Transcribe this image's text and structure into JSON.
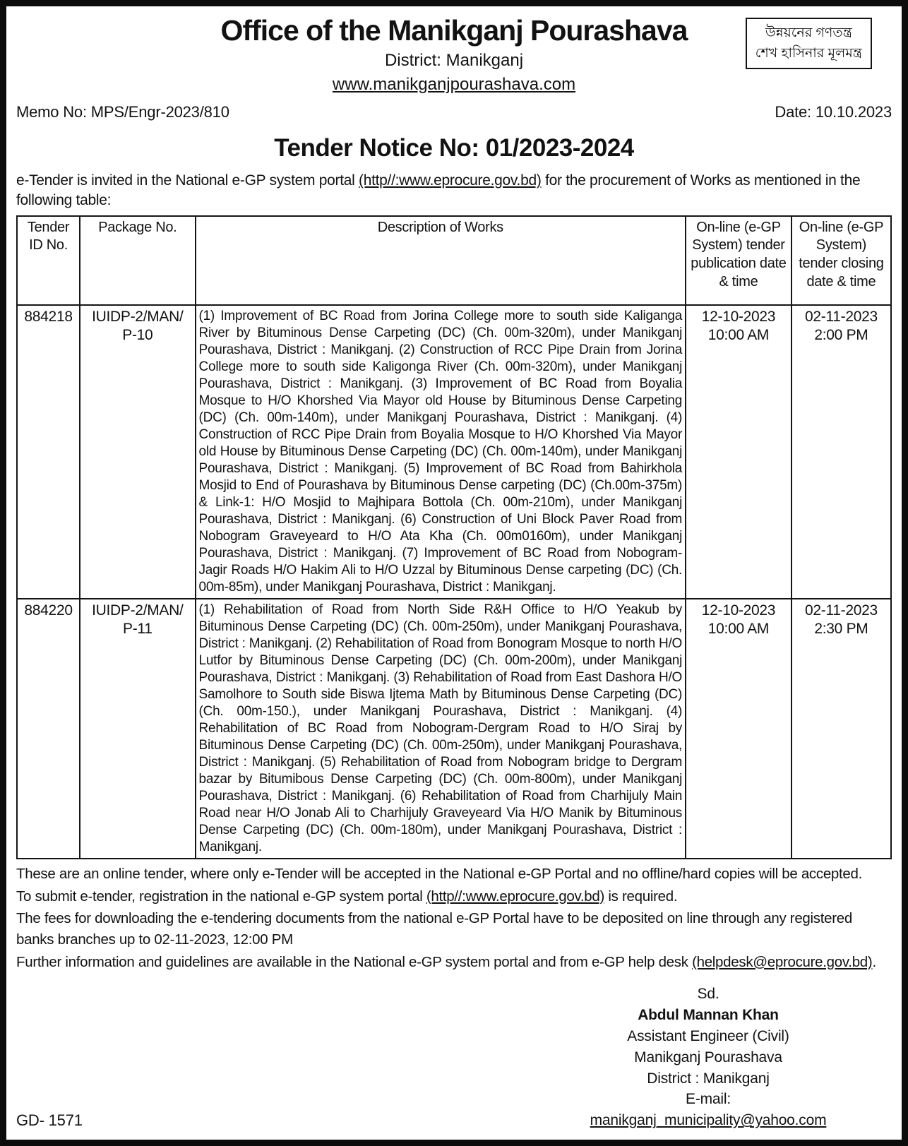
{
  "header": {
    "office_title": "Office of the Manikganj Pourashava",
    "district_line": "District: Manikganj",
    "website": "www.manikganjpourashava.com",
    "slogan_line1": "উন্নয়নের গণতন্ত্র",
    "slogan_line2": "শেখ হাসিনার মূলমন্ত্র",
    "memo_no": "Memo No: MPS/Engr-2023/810",
    "date": "Date: 10.10.2023"
  },
  "notice_title": "Tender Notice No: 01/2023-2024",
  "intro": {
    "pre": "e-Tender is invited in the National e-GP system portal ",
    "link": "(http//:www.eprocure.gov.bd)",
    "post": " for the procurement of Works as mentioned in the following table:"
  },
  "table": {
    "headers": [
      "Tender ID No.",
      "Package No.",
      "Description of Works",
      "On-line (e-GP System) tender publication date & time",
      "On-line (e-GP System) tender closing date & time"
    ],
    "rows": [
      {
        "tender_id": "884218",
        "package_no": "IUIDP-2/MAN/ P-10",
        "description": "(1) Improvement of BC Road from Jorina College more to south side Kaliganga River by Bituminous Dense Carpeting (DC) (Ch. 00m-320m), under Manikganj Pourashava, District : Manikganj. (2) Construction of RCC Pipe Drain from Jorina College more to south side Kaligonga River (Ch. 00m-320m), under Manikganj Pourashava, District : Manikganj. (3) Improvement of BC Road from Boyalia Mosque to H/O Khorshed Via Mayor old House by Bituminous Dense Carpeting (DC) (Ch. 00m-140m), under Manikganj Pourashava, District : Manikganj. (4) Construction of RCC Pipe Drain from Boyalia Mosque to H/O Khorshed Via Mayor old House by Bituminous Dense Carpeting (DC) (Ch. 00m-140m), under Manikganj Pourashava, District : Manikganj. (5) Improvement of BC Road from Bahirkhola Mosjid to End of Pourashava by Bituminous Dense carpeting (DC) (Ch.00m-375m) & Link-1: H/O Mosjid to Majhipara Bottola (Ch. 00m-210m), under Manikganj Pourashava, District : Manikganj. (6) Construction of Uni Block Paver Road from Nobogram Graveyeard to H/O Ata Kha (Ch. 00m0160m), under Manikganj Pourashava, District : Manikganj. (7) Improvement of BC Road from Nobogram-Jagir Roads H/O Hakim Ali to H/O Uzzal by Bituminous Dense carpeting (DC) (Ch. 00m-85m), under Manikganj Pourashava, District : Manikganj.",
        "publication_date": "12-10-2023",
        "publication_time": "10:00 AM",
        "closing_date": "02-11-2023",
        "closing_time": "2:00 PM"
      },
      {
        "tender_id": "884220",
        "package_no": "IUIDP-2/MAN/ P-11",
        "description": "(1) Rehabilitation of Road from North Side R&H Office to H/O Yeakub by Bituminous Dense Carpeting (DC) (Ch. 00m-250m), under Manikganj Pourashava, District : Manikganj. (2) Rehabilitation of Road from Bonogram Mosque to north H/O Lutfor by Bituminous Dense Carpeting (DC) (Ch. 00m-200m), under Manikganj Pourashava, District : Manikganj. (3) Rehabilitation of Road from East Dashora H/O Samolhore to South side Biswa Ijtema Math by Bituminous Dense Carpeting (DC) (Ch. 00m-150.), under Manikganj Pourashava, District : Manikganj. (4) Rehabilitation of BC Road from Nobogram-Dergram Road to H/O Siraj by Bituminous Dense Carpeting (DC) (Ch. 00m-250m), under Manikganj Pourashava, District : Manikganj. (5) Rehabilitation of Road from Nobogram bridge to Dergram bazar by Bitumibous Dense Carpeting (DC) (Ch. 00m-800m), under Manikganj Pourashava, District : Manikganj. (6) Rehabilitation of Road from Charhijuly Main Road near H/O Jonab Ali to Charhijuly Graveyeard Via H/O Manik by Bituminous Dense Carpeting (DC) (Ch. 00m-180m), under Manikganj Pourashava, District : Manikganj.",
        "publication_date": "12-10-2023",
        "publication_time": "10:00 AM",
        "closing_date": "02-11-2023",
        "closing_time": "2:30 PM"
      }
    ]
  },
  "notes": [
    {
      "pre": "These are an online tender, where only e-Tender will be accepted in the National e-GP Portal and no offline/hard copies will be accepted.",
      "link": "",
      "post": ""
    },
    {
      "pre": "To submit e-tender, registration in the national e-GP system portal ",
      "link": "(http//:www.eprocure.gov.bd)",
      "post": " is required."
    },
    {
      "pre": "The fees for downloading the e-tendering documents from the national e-GP Portal have to be deposited on line through any registered banks branches up to 02-11-2023, 12:00 PM",
      "link": "",
      "post": ""
    },
    {
      "pre": "Further information and guidelines are available in the National e-GP system portal and from e-GP help desk ",
      "link": "(helpdesk@eprocure.gov.bd)",
      "post": "."
    }
  ],
  "signature": {
    "sd": "Sd.",
    "name": "Abdul Mannan Khan",
    "title": "Assistant Engineer (Civil)",
    "org": "Manikganj Pourashava",
    "district": "District : Manikganj",
    "email_label": "E-mail: ",
    "email": "manikganj_municipality@yahoo.com"
  },
  "gd_no": "GD- 1571"
}
